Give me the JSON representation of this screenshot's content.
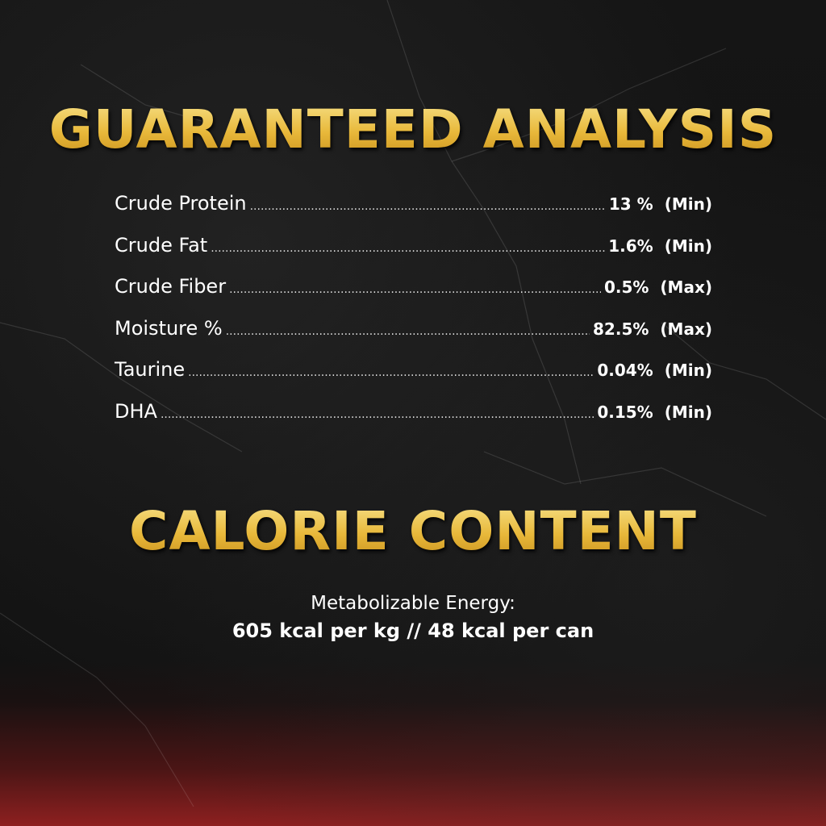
{
  "guaranteed_analysis": {
    "title": "GUARANTEED ANALYSIS",
    "rows": [
      {
        "label": "Crude Protein",
        "value": "13 %",
        "qualifier": "(Min)"
      },
      {
        "label": "Crude Fat",
        "value": "1.6%",
        "qualifier": "(Min)"
      },
      {
        "label": "Crude Fiber",
        "value": "0.5%",
        "qualifier": "(Max)"
      },
      {
        "label": "Moisture %",
        "value": "82.5%",
        "qualifier": "(Max)"
      },
      {
        "label": "Taurine",
        "value": "0.04%",
        "qualifier": "(Min)"
      },
      {
        "label": "DHA",
        "value": "0.15%",
        "qualifier": "(Min)"
      }
    ]
  },
  "calorie_content": {
    "title": "CALORIE CONTENT",
    "label": "Metabolizable Energy:",
    "value": "605 kcal per kg //  48 kcal per can"
  },
  "colors": {
    "gold": "#e8b83a",
    "background": "#121212",
    "bottom_red": "#8e2020"
  }
}
